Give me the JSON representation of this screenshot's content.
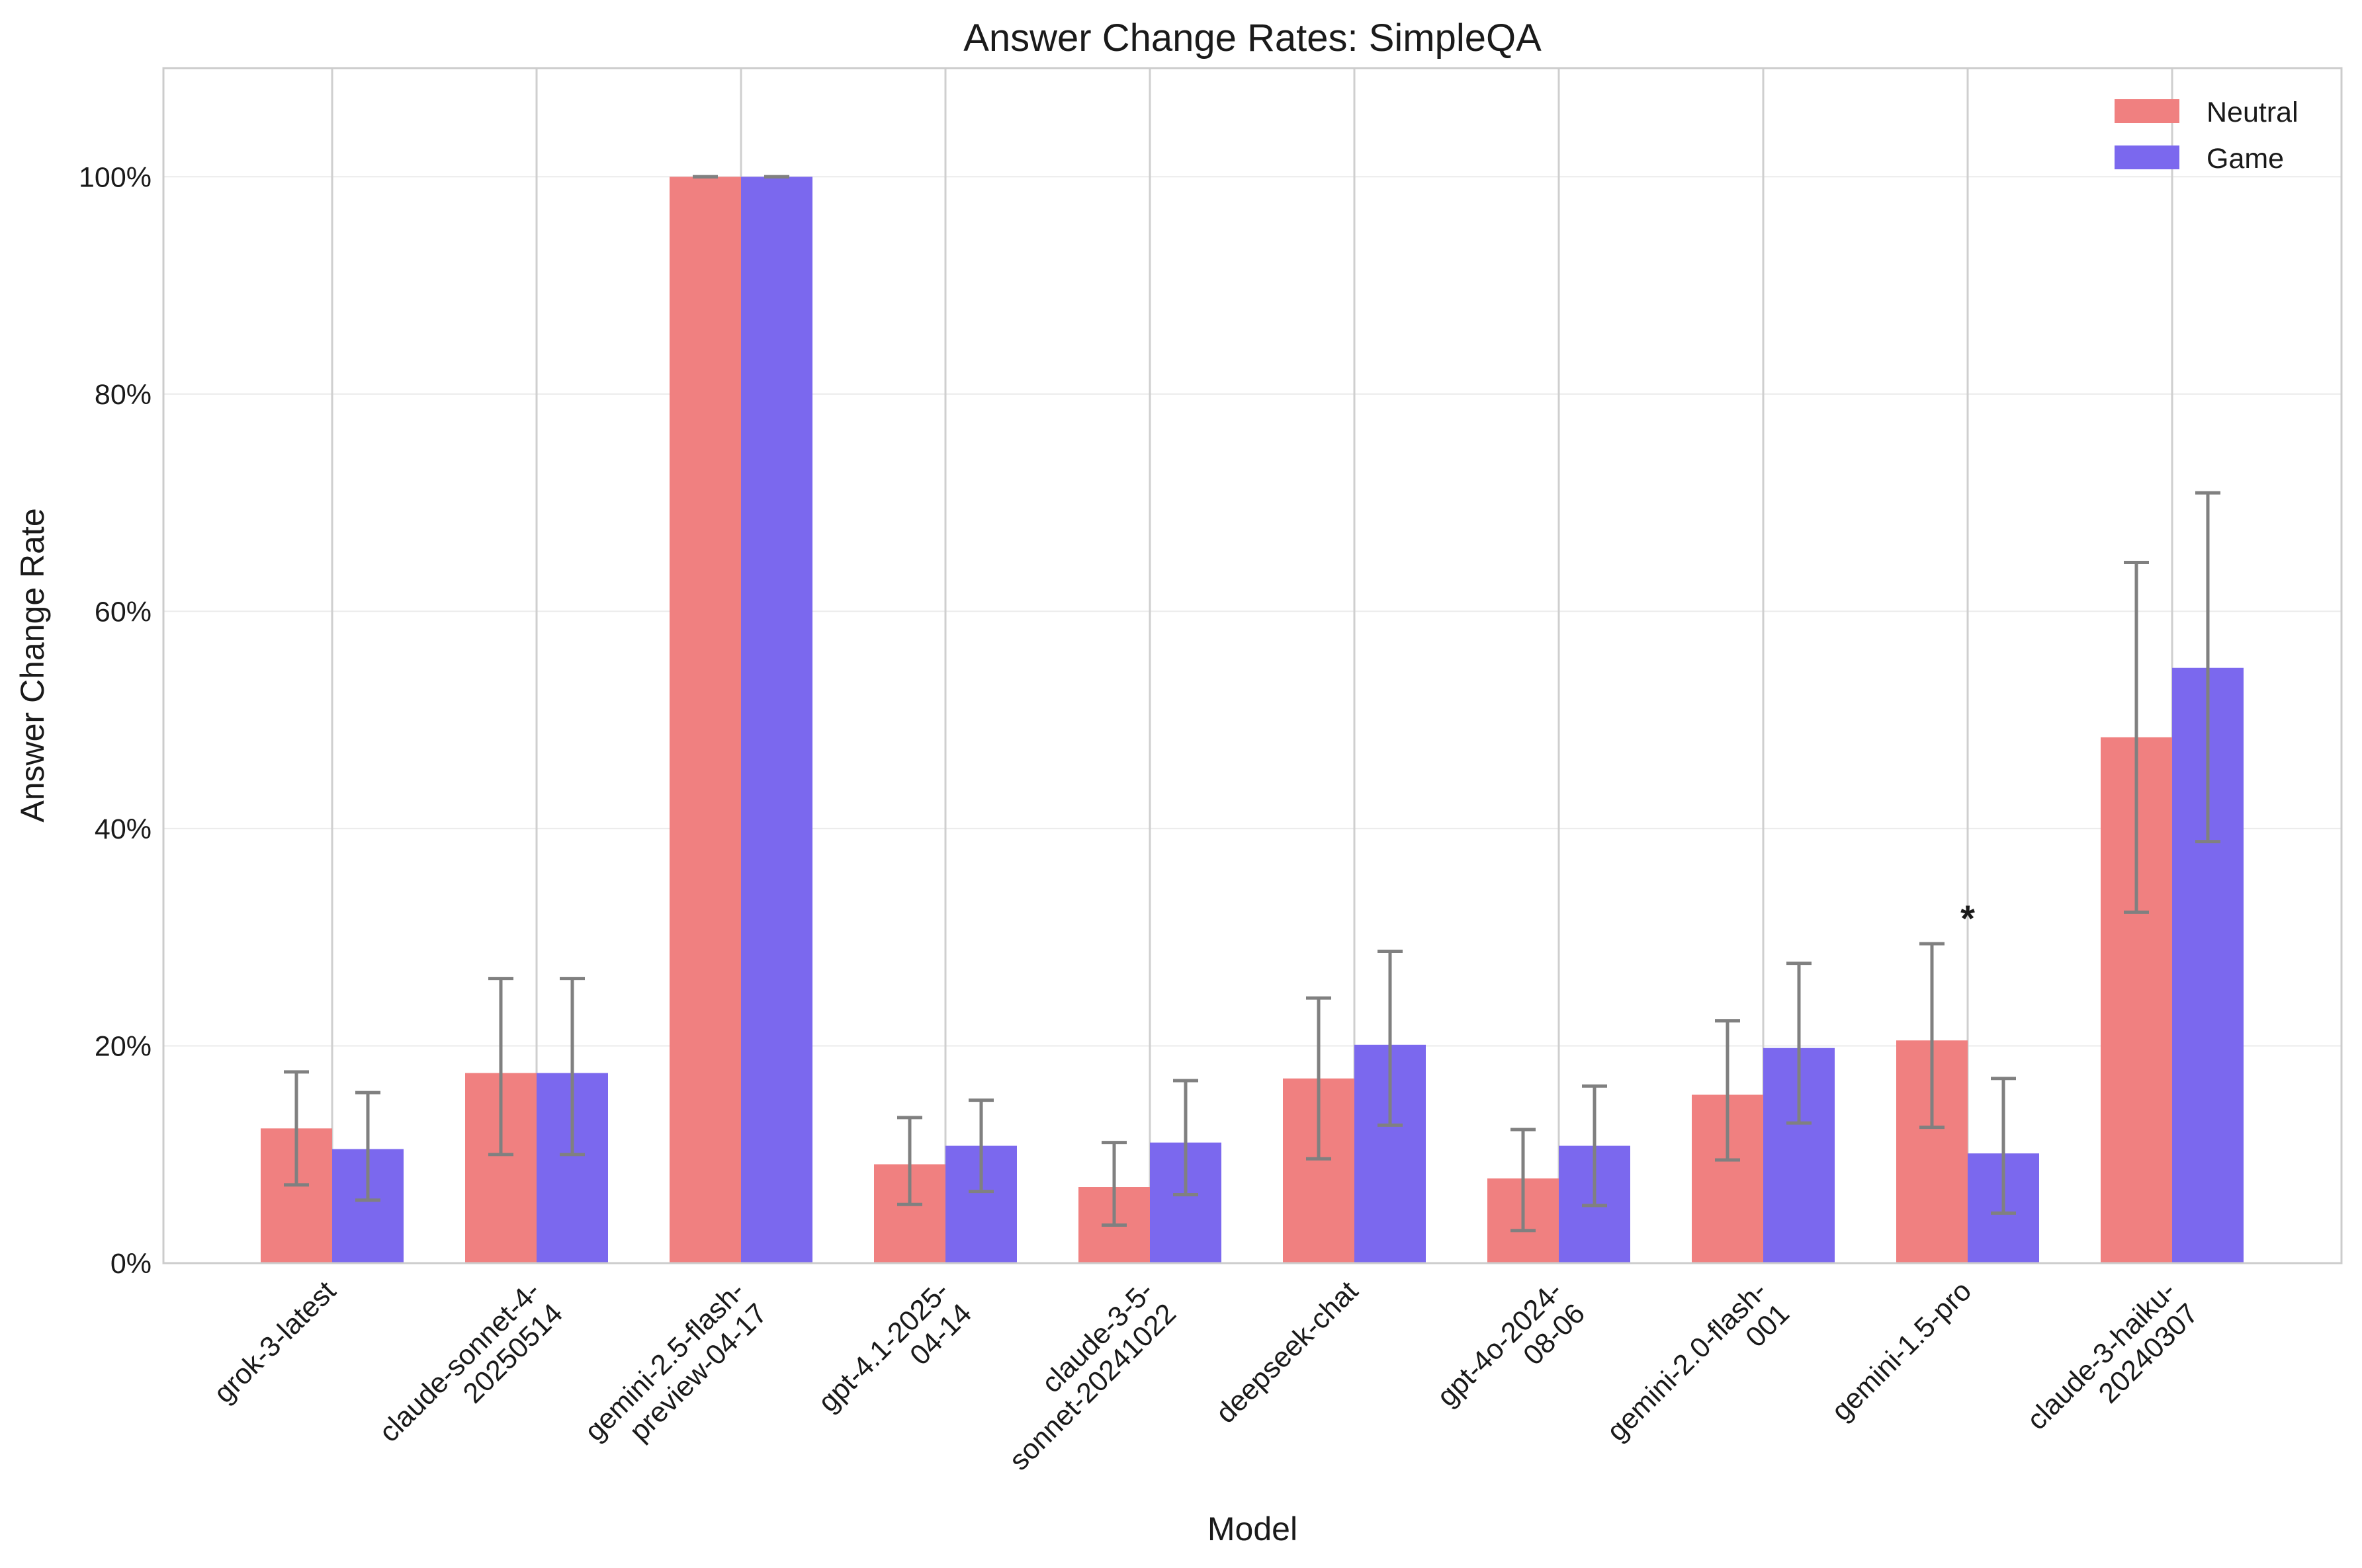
{
  "chart_data": {
    "type": "bar",
    "title": "Answer Change Rates: SimpleQA",
    "xlabel": "Model",
    "ylabel": "Answer Change Rate",
    "ylim": [
      0,
      1.1
    ],
    "yticks": [
      0,
      0.2,
      0.4,
      0.6,
      0.8,
      1.0
    ],
    "ytick_labels": [
      "0%",
      "20%",
      "40%",
      "60%",
      "80%",
      "100%"
    ],
    "grid": true,
    "legend_position": "top-right",
    "categories": [
      "grok-3-latest",
      "claude-sonnet-4-20250514",
      "gemini-2.5-flash-preview-04-17",
      "gpt-4.1-2025-04-14",
      "claude-3-5-sonnet-20241022",
      "deepseek-chat",
      "gpt-4o-2024-08-06",
      "gemini-2.0-flash-001",
      "gemini-1.5-pro",
      "claude-3-haiku-20240307"
    ],
    "category_label_lines": [
      [
        "grok-3-latest"
      ],
      [
        "claude-sonnet-4-",
        "20250514"
      ],
      [
        "gemini-2.5-flash-",
        "preview-04-17"
      ],
      [
        "gpt-4.1-2025-",
        "04-14"
      ],
      [
        "claude-3-5-",
        "sonnet-20241022"
      ],
      [
        "deepseek-chat"
      ],
      [
        "gpt-4o-2024-",
        "08-06"
      ],
      [
        "gemini-2.0-flash-",
        "001"
      ],
      [
        "gemini-1.5-pro"
      ],
      [
        "claude-3-haiku-",
        "20240307"
      ]
    ],
    "series": [
      {
        "name": "Neutral",
        "color": "#f08080",
        "values": [
          0.124,
          0.175,
          1.0,
          0.091,
          0.07,
          0.17,
          0.078,
          0.155,
          0.205,
          0.484
        ],
        "err_low": [
          0.072,
          0.1,
          1.0,
          0.054,
          0.035,
          0.096,
          0.03,
          0.095,
          0.125,
          0.323
        ],
        "err_high": [
          0.176,
          0.262,
          1.0,
          0.134,
          0.111,
          0.244,
          0.123,
          0.223,
          0.294,
          0.645
        ]
      },
      {
        "name": "Game",
        "color": "#7b68ee",
        "values": [
          0.105,
          0.175,
          1.0,
          0.108,
          0.111,
          0.201,
          0.108,
          0.198,
          0.101,
          0.548
        ],
        "err_low": [
          0.058,
          0.1,
          1.0,
          0.066,
          0.063,
          0.127,
          0.053,
          0.129,
          0.046,
          0.388
        ],
        "err_high": [
          0.157,
          0.262,
          1.0,
          0.15,
          0.168,
          0.287,
          0.163,
          0.276,
          0.17,
          0.709
        ]
      }
    ],
    "annotations": [
      {
        "text": "*",
        "category_index": 8,
        "y": 0.33
      }
    ],
    "error_bar_color": "#808080"
  }
}
